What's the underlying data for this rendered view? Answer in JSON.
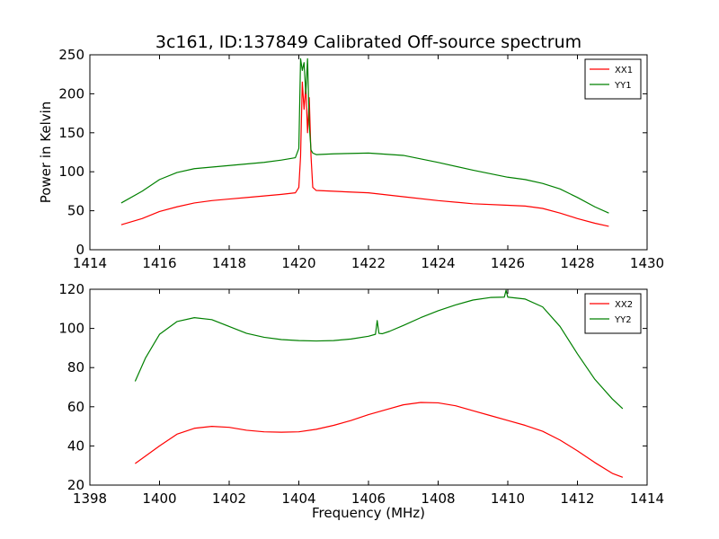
{
  "figure": {
    "title": "3c161, ID:137849 Calibrated Off-source spectrum"
  },
  "chart_data": [
    {
      "type": "line",
      "title": "3c161, ID:137849 Calibrated Off-source spectrum",
      "xlabel": "",
      "ylabel": "Power in Kelvin",
      "xlim": [
        1414,
        1430
      ],
      "ylim": [
        0,
        250
      ],
      "xticks": [
        1414,
        1416,
        1418,
        1420,
        1422,
        1424,
        1426,
        1428,
        1430
      ],
      "yticks": [
        0,
        50,
        100,
        150,
        200,
        250
      ],
      "grid": false,
      "legend_position": "top-right",
      "series": [
        {
          "name": "XX1",
          "color": "#ff0000",
          "x": [
            1414.9,
            1415.5,
            1416.0,
            1416.5,
            1417.0,
            1417.5,
            1418.0,
            1418.5,
            1419.0,
            1419.5,
            1419.9,
            1420.0,
            1420.05,
            1420.1,
            1420.15,
            1420.2,
            1420.25,
            1420.3,
            1420.35,
            1420.4,
            1420.5,
            1421.0,
            1422.0,
            1423.0,
            1424.0,
            1425.0,
            1426.0,
            1426.5,
            1427.0,
            1427.5,
            1428.0,
            1428.5,
            1428.9
          ],
          "values": [
            32,
            40,
            49,
            55,
            60,
            63,
            65,
            67,
            69,
            71,
            73,
            80,
            120,
            215,
            180,
            210,
            150,
            195,
            120,
            80,
            76,
            75,
            73,
            68,
            63,
            59,
            57,
            56,
            53,
            47,
            40,
            34,
            30
          ]
        },
        {
          "name": "YY1",
          "color": "#008000",
          "x": [
            1414.9,
            1415.5,
            1416.0,
            1416.5,
            1417.0,
            1417.5,
            1418.0,
            1418.5,
            1419.0,
            1419.5,
            1419.9,
            1420.0,
            1420.05,
            1420.1,
            1420.15,
            1420.2,
            1420.25,
            1420.3,
            1420.35,
            1420.4,
            1420.5,
            1421.0,
            1422.0,
            1423.0,
            1424.0,
            1425.0,
            1426.0,
            1426.5,
            1427.0,
            1427.5,
            1428.0,
            1428.5,
            1428.9
          ],
          "values": [
            60,
            75,
            90,
            99,
            104,
            106,
            108,
            110,
            112,
            115,
            118,
            130,
            245,
            230,
            240,
            200,
            245,
            160,
            128,
            124,
            122,
            123,
            124,
            121,
            112,
            102,
            93,
            90,
            85,
            78,
            67,
            55,
            47
          ]
        }
      ]
    },
    {
      "type": "line",
      "title": "",
      "xlabel": "Frequency (MHz)",
      "ylabel": "",
      "xlim": [
        1398,
        1414
      ],
      "ylim": [
        20,
        120
      ],
      "xticks": [
        1398,
        1400,
        1402,
        1404,
        1406,
        1408,
        1410,
        1412,
        1414
      ],
      "yticks": [
        20,
        40,
        60,
        80,
        100,
        120
      ],
      "grid": false,
      "legend_position": "top-right",
      "series": [
        {
          "name": "XX2",
          "color": "#ff0000",
          "x": [
            1399.3,
            1400.0,
            1400.5,
            1401.0,
            1401.5,
            1402.0,
            1402.5,
            1403.0,
            1403.5,
            1404.0,
            1404.5,
            1405.0,
            1405.5,
            1406.0,
            1406.5,
            1407.0,
            1407.5,
            1408.0,
            1408.5,
            1409.0,
            1409.5,
            1410.0,
            1410.5,
            1411.0,
            1411.5,
            1412.0,
            1412.5,
            1413.0,
            1413.3
          ],
          "values": [
            31,
            40,
            46,
            49,
            50,
            49.5,
            48,
            47.2,
            47,
            47.2,
            48.5,
            50.5,
            53,
            56,
            58.5,
            61,
            62.2,
            62,
            60.5,
            58,
            55.5,
            53,
            50.5,
            47.5,
            43,
            37.5,
            31.5,
            26,
            24
          ]
        },
        {
          "name": "YY2",
          "color": "#008000",
          "x": [
            1399.3,
            1399.6,
            1400.0,
            1400.5,
            1401.0,
            1401.5,
            1402.0,
            1402.5,
            1403.0,
            1403.5,
            1404.0,
            1404.5,
            1405.0,
            1405.5,
            1406.0,
            1406.2,
            1406.25,
            1406.3,
            1406.4,
            1406.6,
            1407.0,
            1407.5,
            1408.0,
            1408.5,
            1409.0,
            1409.5,
            1409.9,
            1409.95,
            1410.0,
            1410.5,
            1411.0,
            1411.5,
            1412.0,
            1412.5,
            1413.0,
            1413.3
          ],
          "values": [
            73,
            85,
            97,
            103.5,
            105.5,
            104.5,
            101,
            97.5,
            95.5,
            94.3,
            93.8,
            93.6,
            93.8,
            94.6,
            96,
            97,
            104,
            97.5,
            97.3,
            98.5,
            101.5,
            105.5,
            109,
            112,
            114.5,
            115.8,
            116,
            119.5,
            116,
            115,
            111,
            101,
            87,
            74,
            64,
            59
          ]
        }
      ]
    }
  ]
}
